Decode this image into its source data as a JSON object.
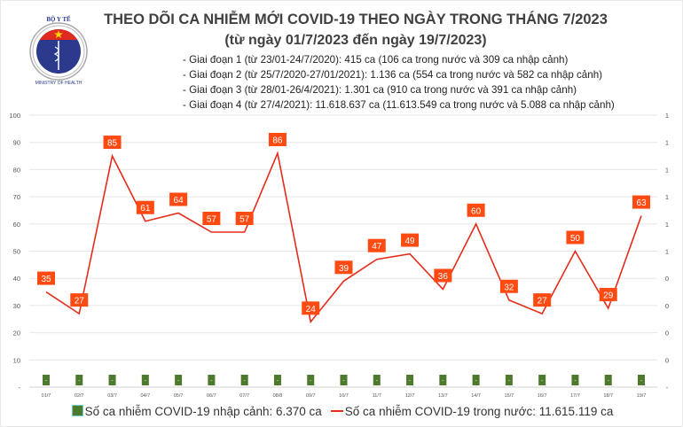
{
  "logo": {
    "top_text": "BỘ Y TẾ",
    "bottom_text": "MINISTRY OF HEALTH"
  },
  "header": {
    "title": "THEO DÕI CA NHIỄM MỚI COVID-19 THEO NGÀY TRONG THÁNG 7/2023",
    "subtitle": "(từ ngày 01/7/2023 đến ngày 19/7/2023)",
    "notes": [
      "- Giai đoạn 1 (từ 23/01-24/7/2020): 415 ca (106 ca trong nước và 309 ca nhập cảnh)",
      "- Giai đoạn 2 (từ 25/7/2020-27/01/2021): 1.136 ca (554 ca trong nước và 582 ca nhập cảnh)",
      "- Giai đoạn 3 (từ 28/01-26/4/2021): 1.301 ca (910 ca trong nước và 391 ca nhập cảnh)",
      "- Giai đoạn 4 (từ 27/4/2021): 11.618.637 ca (11.613.549 ca trong nước và 5.088 ca nhập cảnh)"
    ]
  },
  "chart_data": {
    "type": "bar+line",
    "categories": [
      "01/7",
      "02/7",
      "03/7",
      "04/7",
      "05/7",
      "06/7",
      "07/7",
      "08/8",
      "09/7",
      "10/7",
      "11/7",
      "12/7",
      "13/7",
      "14/7",
      "15/7",
      "16/7",
      "17/7",
      "18/7",
      "19/7"
    ],
    "series": [
      {
        "name": "Số ca nhiễm COVID-19 nhập cảnh: 6.370 ca",
        "type": "bar",
        "axis": "right",
        "values": [
          0,
          0,
          0,
          0,
          0,
          0,
          0,
          0,
          0,
          0,
          0,
          0,
          0,
          0,
          0,
          0,
          0,
          0,
          0
        ],
        "data_label": "-",
        "color": "#4e7a2e"
      },
      {
        "name": "Số ca nhiễm COVID-19 trong nước: 11.615.119 ca",
        "type": "line",
        "axis": "left",
        "values": [
          35,
          27,
          85,
          61,
          64,
          57,
          57,
          86,
          24,
          39,
          47,
          49,
          36,
          60,
          32,
          27,
          50,
          29,
          63
        ],
        "color": "#e52b1a",
        "label_color": "#ff4a12"
      }
    ],
    "y_left": {
      "range": [
        0,
        100
      ],
      "ticks": [
        "-",
        "10",
        "20",
        "30",
        "40",
        "50",
        "60",
        "70",
        "80",
        "90",
        "100"
      ]
    },
    "y_right": {
      "ticks": [
        "-",
        "0",
        "0",
        "0",
        "0",
        "1",
        "1",
        "1",
        "1",
        "1",
        "1"
      ]
    },
    "grid": true,
    "legend": "bottom"
  }
}
